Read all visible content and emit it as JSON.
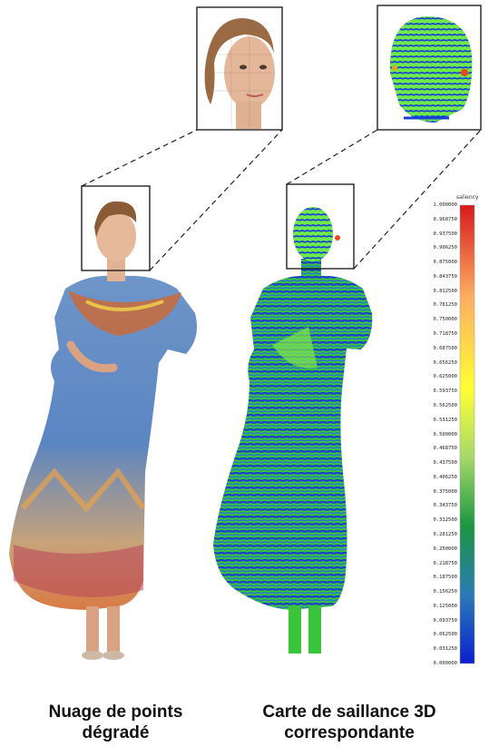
{
  "captions": {
    "left": [
      "Nuage de points",
      "dégradé"
    ],
    "right": [
      "Carte de saillance 3D",
      "correspondante"
    ]
  },
  "colorbar": {
    "title": "saliency",
    "ticks": [
      "1.000000",
      "0.968750",
      "0.937500",
      "0.906250",
      "0.875000",
      "0.843750",
      "0.812500",
      "0.781250",
      "0.750000",
      "0.718750",
      "0.687500",
      "0.656250",
      "0.625000",
      "0.593750",
      "0.562500",
      "0.531250",
      "0.500000",
      "0.468750",
      "0.437500",
      "0.406250",
      "0.375000",
      "0.343750",
      "0.312500",
      "0.281250",
      "0.250000",
      "0.218750",
      "0.187500",
      "0.156250",
      "0.125000",
      "0.093750",
      "0.062500",
      "0.031250",
      "0.000000"
    ],
    "colors": [
      "#d7191c",
      "#fdae61",
      "#ffff33",
      "#a6d96a",
      "#1a9641",
      "#2c7bb6",
      "#0a1fd0"
    ]
  },
  "figures": {
    "left": {
      "label": "degraded-point-cloud"
    },
    "right": {
      "label": "saliency-map"
    }
  }
}
